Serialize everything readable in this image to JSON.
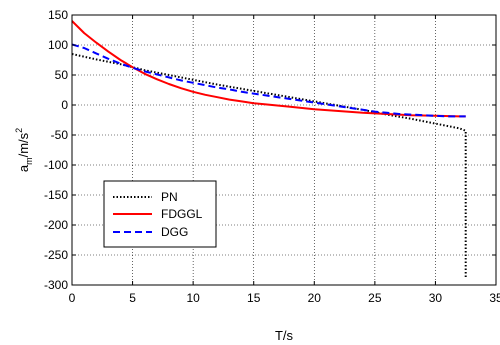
{
  "chart_data": {
    "type": "line",
    "title": "",
    "xlabel": "T/s",
    "ylabel": {
      "base": "a",
      "sub": "m",
      "mid": "/m/s",
      "sup": "2"
    },
    "xlim": [
      0,
      35
    ],
    "ylim": [
      -300,
      150
    ],
    "xticks": [
      0,
      5,
      10,
      15,
      20,
      25,
      30,
      35
    ],
    "yticks": [
      150,
      100,
      50,
      0,
      -50,
      -100,
      -150,
      -200,
      -250,
      -300
    ],
    "grid": true,
    "legend_position": "lower-left",
    "series": [
      {
        "name": "PN",
        "color": "#000000",
        "dash": "dotted",
        "points": [
          [
            0,
            85
          ],
          [
            2,
            76
          ],
          [
            4,
            68
          ],
          [
            5,
            63
          ],
          [
            6,
            58
          ],
          [
            8,
            50
          ],
          [
            10,
            42
          ],
          [
            12,
            34
          ],
          [
            14,
            27
          ],
          [
            16,
            20
          ],
          [
            18,
            13
          ],
          [
            20,
            6
          ],
          [
            22,
            -1
          ],
          [
            24,
            -8
          ],
          [
            26,
            -16
          ],
          [
            28,
            -23
          ],
          [
            30,
            -31
          ],
          [
            32,
            -39
          ],
          [
            32.5,
            -43
          ],
          [
            32.5,
            -290
          ]
        ]
      },
      {
        "name": "FDGGL",
        "color": "#ff0000",
        "dash": "solid",
        "points": [
          [
            0,
            140
          ],
          [
            1,
            120
          ],
          [
            2,
            104
          ],
          [
            3,
            89
          ],
          [
            4,
            75
          ],
          [
            5,
            63
          ],
          [
            6,
            52
          ],
          [
            7,
            43
          ],
          [
            8,
            35
          ],
          [
            9,
            28
          ],
          [
            10,
            22
          ],
          [
            11,
            17
          ],
          [
            12,
            13
          ],
          [
            13,
            9
          ],
          [
            14,
            6
          ],
          [
            15,
            3
          ],
          [
            16,
            1
          ],
          [
            18,
            -3
          ],
          [
            20,
            -7
          ],
          [
            22,
            -10
          ],
          [
            24,
            -13
          ],
          [
            26,
            -15
          ],
          [
            28,
            -17
          ],
          [
            30,
            -18
          ],
          [
            32,
            -19
          ],
          [
            32.5,
            -19
          ]
        ]
      },
      {
        "name": "DGG",
        "color": "#0000ff",
        "dash": "dashed",
        "points": [
          [
            0,
            101
          ],
          [
            1,
            95
          ],
          [
            2,
            86
          ],
          [
            3,
            77
          ],
          [
            4,
            69
          ],
          [
            5,
            62
          ],
          [
            6,
            56
          ],
          [
            7,
            51
          ],
          [
            8,
            46
          ],
          [
            9,
            41
          ],
          [
            10,
            37
          ],
          [
            11,
            33
          ],
          [
            12,
            29
          ],
          [
            13,
            26
          ],
          [
            14,
            22
          ],
          [
            15,
            19
          ],
          [
            16,
            16
          ],
          [
            17,
            13
          ],
          [
            18,
            10
          ],
          [
            19,
            7
          ],
          [
            20,
            4
          ],
          [
            21,
            1
          ],
          [
            22,
            -2
          ],
          [
            23,
            -5
          ],
          [
            24,
            -8
          ],
          [
            25,
            -11
          ],
          [
            26,
            -13
          ],
          [
            27,
            -15
          ],
          [
            28,
            -16
          ],
          [
            29,
            -17
          ],
          [
            30,
            -18
          ],
          [
            31,
            -19
          ],
          [
            32,
            -19
          ],
          [
            32.5,
            -19
          ]
        ]
      }
    ]
  }
}
